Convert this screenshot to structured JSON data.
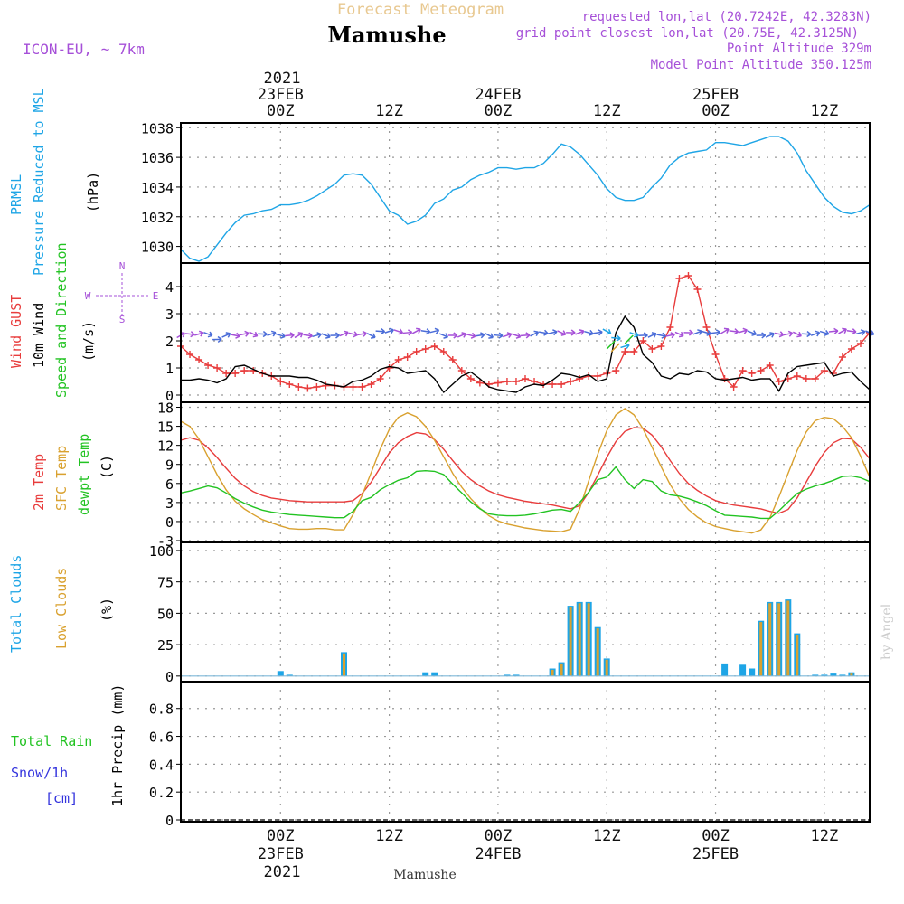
{
  "header": {
    "forecast_title": "Forecast Meteogram",
    "location": "Mamushe",
    "model": "ICON-EU, ~ 7km",
    "requested": "requested lon,lat (20.7242E, 42.3283N)",
    "grid_point": "grid point closest lon,lat (20.75E, 42.3125N)",
    "point_alt": "Point Altitude 329m",
    "model_alt": "Model Point Altitude 350.125m",
    "footer_location": "Mamushe",
    "watermark": "by Angel"
  },
  "colors": {
    "pressure": "#1ea5e6",
    "gust": "#e83c3c",
    "wind": "#000000",
    "direction": "#22c322",
    "t2m": "#e83c3c",
    "sfc": "#d9a12f",
    "dewpt": "#22c322",
    "total_clouds": "#1ea5e6",
    "low_clouds": "#d9a12f",
    "rain": "#22c322",
    "snow": "#3333dd",
    "purple": "#a650d8",
    "axis_label_orange": "#e8c890"
  },
  "time_axis": {
    "top_year": "2021",
    "bottom_year": "2021",
    "ticks": [
      {
        "hour": 0,
        "label": "00Z",
        "date": "23FEB"
      },
      {
        "hour": 12,
        "label": "12Z",
        "date": ""
      },
      {
        "hour": 24,
        "label": "00Z",
        "date": "24FEB"
      },
      {
        "hour": 36,
        "label": "12Z",
        "date": ""
      },
      {
        "hour": 48,
        "label": "00Z",
        "date": "25FEB"
      },
      {
        "hour": 60,
        "label": "12Z",
        "date": ""
      }
    ]
  },
  "chart_data": [
    {
      "type": "line",
      "panel": "pressure",
      "labels": [
        "PRMSL",
        "Pressure Reduced to MSL",
        "(hPa)"
      ],
      "ylim": [
        1029,
        1038.2
      ],
      "yticks": [
        1030,
        1032,
        1034,
        1036,
        1038
      ],
      "grid": true,
      "x": [
        -11,
        -10,
        -9,
        -8,
        -7,
        -6,
        -5,
        -4,
        -3,
        -2,
        -1,
        0,
        1,
        2,
        3,
        4,
        5,
        6,
        7,
        8,
        9,
        10,
        11,
        12,
        13,
        14,
        15,
        16,
        17,
        18,
        19,
        20,
        21,
        22,
        23,
        24,
        25,
        26,
        27,
        28,
        29,
        30,
        31,
        32,
        33,
        34,
        35,
        36,
        37,
        38,
        39,
        40,
        41,
        42,
        43,
        44,
        45,
        46,
        47,
        48,
        49,
        50,
        51,
        52,
        53,
        54,
        55,
        56,
        57,
        58,
        59,
        60,
        61,
        62,
        63,
        64,
        65
      ],
      "series": [
        {
          "key": "prmsl",
          "values": [
            1029.8,
            1029.2,
            1029.0,
            1029.3,
            1030.1,
            1030.9,
            1031.6,
            1032.1,
            1032.2,
            1032.4,
            1032.5,
            1032.8,
            1032.8,
            1032.9,
            1033.1,
            1033.4,
            1033.8,
            1034.2,
            1034.8,
            1034.9,
            1034.8,
            1034.2,
            1033.3,
            1032.4,
            1032.1,
            1031.5,
            1031.7,
            1032.1,
            1032.9,
            1033.2,
            1033.8,
            1034.0,
            1034.5,
            1034.8,
            1035.0,
            1035.3,
            1035.3,
            1035.2,
            1035.3,
            1035.3,
            1035.6,
            1036.2,
            1036.9,
            1036.7,
            1036.2,
            1035.5,
            1034.8,
            1033.9,
            1033.3,
            1033.1,
            1033.1,
            1033.3,
            1034.0,
            1034.6,
            1035.5,
            1036.0,
            1036.3,
            1036.4,
            1036.5,
            1037.0,
            1037.0,
            1036.9,
            1036.8,
            1037.0,
            1037.2,
            1037.4,
            1037.4,
            1037.1,
            1036.3,
            1035.1,
            1034.2,
            1033.3,
            1032.7,
            1032.3,
            1032.2,
            1032.4,
            1032.8
          ]
        }
      ]
    },
    {
      "type": "line",
      "panel": "wind",
      "labels": [
        "Wind GUST",
        "10m Wind",
        "Speed and Direction",
        "(m/s)"
      ],
      "compass": {
        "n": "N",
        "s": "S",
        "e": "E",
        "w": "W"
      },
      "ylim": [
        -0.2,
        4.8
      ],
      "yticks": [
        0,
        1,
        2,
        3,
        4
      ],
      "grid": true,
      "x": [
        -11,
        -10,
        -9,
        -8,
        -7,
        -6,
        -5,
        -4,
        -3,
        -2,
        -1,
        0,
        1,
        2,
        3,
        4,
        5,
        6,
        7,
        8,
        9,
        10,
        11,
        12,
        13,
        14,
        15,
        16,
        17,
        18,
        19,
        20,
        21,
        22,
        23,
        24,
        25,
        26,
        27,
        28,
        29,
        30,
        31,
        32,
        33,
        34,
        35,
        36,
        37,
        38,
        39,
        40,
        41,
        42,
        43,
        44,
        45,
        46,
        47,
        48,
        49,
        50,
        51,
        52,
        53,
        54,
        55,
        56,
        57,
        58,
        59,
        60,
        61,
        62,
        63,
        64,
        65
      ],
      "series": [
        {
          "key": "gust",
          "marker": "+",
          "values": [
            1.8,
            1.5,
            1.3,
            1.1,
            1.0,
            0.8,
            0.8,
            0.9,
            0.9,
            0.8,
            0.7,
            0.5,
            0.4,
            0.3,
            0.25,
            0.3,
            0.35,
            0.35,
            0.3,
            0.3,
            0.3,
            0.4,
            0.6,
            1.0,
            1.3,
            1.4,
            1.6,
            1.7,
            1.8,
            1.6,
            1.3,
            0.9,
            0.6,
            0.45,
            0.4,
            0.45,
            0.5,
            0.5,
            0.6,
            0.5,
            0.4,
            0.4,
            0.4,
            0.5,
            0.6,
            0.7,
            0.7,
            0.8,
            0.9,
            1.6,
            1.6,
            2.0,
            1.7,
            1.8,
            2.5,
            4.3,
            4.4,
            3.9,
            2.5,
            1.5,
            0.6,
            0.3,
            0.9,
            0.8,
            0.9,
            1.1,
            0.5,
            0.6,
            0.7,
            0.6,
            0.6,
            0.9,
            0.8,
            1.4,
            1.7,
            1.9,
            2.3
          ]
        },
        {
          "key": "wind",
          "values": [
            0.55,
            0.55,
            0.6,
            0.55,
            0.45,
            0.6,
            1.05,
            1.1,
            0.95,
            0.8,
            0.7,
            0.7,
            0.7,
            0.65,
            0.65,
            0.55,
            0.4,
            0.35,
            0.3,
            0.5,
            0.55,
            0.7,
            0.95,
            1.05,
            1.0,
            0.8,
            0.85,
            0.9,
            0.6,
            0.1,
            0.4,
            0.7,
            0.85,
            0.6,
            0.3,
            0.2,
            0.15,
            0.1,
            0.3,
            0.4,
            0.35,
            0.55,
            0.8,
            0.75,
            0.65,
            0.75,
            0.5,
            0.6,
            2.3,
            2.9,
            2.5,
            1.5,
            1.2,
            0.7,
            0.6,
            0.8,
            0.75,
            0.9,
            0.85,
            0.6,
            0.55,
            0.6,
            0.65,
            0.55,
            0.6,
            0.6,
            0.15,
            0.8,
            1.05,
            1.1,
            1.15,
            1.2,
            0.7,
            0.8,
            0.85,
            0.5,
            0.2
          ]
        },
        {
          "key": "direction_arrows_level",
          "values": [
            2.2,
            2.25,
            2.25,
            2.25,
            2.05,
            2.2,
            2.2,
            2.25,
            2.25,
            2.25,
            2.25,
            2.2,
            2.2,
            2.2,
            2.2,
            2.2,
            2.2,
            2.2,
            2.25,
            2.25,
            2.25,
            2.2,
            2.35,
            2.35,
            2.35,
            2.3,
            2.35,
            2.35,
            2.35,
            2.2,
            2.2,
            2.2,
            2.2,
            2.2,
            2.2,
            2.2,
            2.2,
            2.2,
            2.2,
            2.25,
            2.3,
            2.3,
            2.3,
            2.3,
            2.3,
            2.3,
            2.3,
            2.35,
            2.1,
            1.8,
            2.25,
            2.2,
            2.2,
            2.2,
            2.2,
            2.25,
            2.3,
            2.3,
            2.3,
            2.3,
            2.35,
            2.35,
            2.35,
            2.3,
            2.2,
            2.2,
            2.25,
            2.25,
            2.25,
            2.25,
            2.25,
            2.3,
            2.35,
            2.35,
            2.35,
            2.3,
            2.3
          ]
        }
      ]
    },
    {
      "type": "line",
      "panel": "temperature",
      "labels": [
        "2m Temp",
        "SFC Temp",
        "dewpt Temp",
        "(C)"
      ],
      "ylim": [
        -3,
        18.5
      ],
      "yticks": [
        -3,
        0,
        3,
        6,
        9,
        12,
        15,
        18
      ],
      "grid": true,
      "x": [
        -11,
        -10,
        -9,
        -8,
        -7,
        -6,
        -5,
        -4,
        -3,
        -2,
        -1,
        0,
        1,
        2,
        3,
        4,
        5,
        6,
        7,
        8,
        9,
        10,
        11,
        12,
        13,
        14,
        15,
        16,
        17,
        18,
        19,
        20,
        21,
        22,
        23,
        24,
        25,
        26,
        27,
        28,
        29,
        30,
        31,
        32,
        33,
        34,
        35,
        36,
        37,
        38,
        39,
        40,
        41,
        42,
        43,
        44,
        45,
        46,
        47,
        48,
        49,
        50,
        51,
        52,
        53,
        54,
        55,
        56,
        57,
        58,
        59,
        60,
        61,
        62,
        63,
        64,
        65
      ],
      "series": [
        {
          "key": "t2m",
          "values": [
            12.8,
            13.2,
            12.8,
            11.6,
            10.1,
            8.4,
            6.8,
            5.6,
            4.7,
            4.1,
            3.7,
            3.5,
            3.3,
            3.2,
            3.1,
            3.1,
            3.1,
            3.1,
            3.1,
            3.3,
            4.4,
            6.2,
            8.5,
            10.8,
            12.4,
            13.4,
            14.0,
            13.8,
            12.9,
            11.4,
            9.6,
            7.9,
            6.6,
            5.6,
            4.8,
            4.2,
            3.8,
            3.5,
            3.2,
            3.0,
            2.8,
            2.6,
            2.3,
            2.0,
            2.5,
            4.6,
            7.3,
            10.1,
            12.6,
            14.2,
            14.8,
            14.7,
            13.6,
            11.8,
            9.6,
            7.6,
            6.0,
            4.9,
            4.0,
            3.3,
            2.9,
            2.6,
            2.4,
            2.2,
            2.0,
            1.6,
            1.3,
            1.9,
            3.7,
            6.2,
            8.7,
            10.9,
            12.4,
            13.1,
            13.0,
            11.7,
            9.9
          ]
        },
        {
          "key": "sfc",
          "values": [
            15.8,
            15.0,
            13.0,
            10.2,
            7.4,
            5.0,
            3.2,
            2.0,
            1.1,
            0.3,
            -0.2,
            -0.7,
            -1.1,
            -1.2,
            -1.2,
            -1.1,
            -1.1,
            -1.3,
            -1.3,
            1.1,
            4.1,
            7.7,
            11.4,
            14.5,
            16.4,
            17.1,
            16.5,
            15.0,
            12.8,
            10.2,
            7.6,
            5.4,
            3.6,
            2.1,
            0.9,
            0.1,
            -0.4,
            -0.7,
            -1.0,
            -1.2,
            -1.4,
            -1.5,
            -1.6,
            -1.2,
            2.0,
            6.4,
            10.6,
            14.3,
            16.8,
            17.8,
            16.8,
            14.6,
            11.7,
            8.6,
            5.8,
            3.6,
            1.9,
            0.7,
            -0.2,
            -0.8,
            -1.1,
            -1.4,
            -1.6,
            -1.8,
            -1.3,
            0.6,
            3.9,
            7.6,
            11.2,
            14.1,
            15.9,
            16.4,
            16.2,
            15.0,
            13.2,
            10.3,
            7.0
          ]
        },
        {
          "key": "dewpt",
          "values": [
            4.5,
            4.8,
            5.2,
            5.6,
            5.3,
            4.5,
            3.6,
            2.9,
            2.3,
            1.8,
            1.5,
            1.3,
            1.1,
            1.0,
            0.9,
            0.8,
            0.7,
            0.6,
            0.6,
            1.6,
            3.3,
            3.8,
            5.0,
            5.8,
            6.5,
            6.9,
            7.9,
            8.0,
            7.9,
            7.4,
            5.9,
            4.5,
            3.1,
            2.0,
            1.2,
            1.0,
            0.9,
            0.9,
            1.0,
            1.2,
            1.5,
            1.8,
            1.9,
            1.6,
            3.0,
            4.6,
            6.6,
            7.0,
            8.6,
            6.6,
            5.2,
            6.6,
            6.3,
            4.8,
            4.2,
            4.0,
            3.6,
            3.1,
            2.5,
            1.7,
            1.0,
            0.9,
            0.8,
            0.7,
            0.5,
            0.5,
            1.7,
            3.1,
            4.4,
            5.1,
            5.6,
            6.0,
            6.5,
            7.1,
            7.2,
            6.9,
            6.3
          ]
        }
      ]
    },
    {
      "type": "bar",
      "panel": "clouds",
      "labels": [
        "Total Clouds",
        "Low Clouds",
        "(%)"
      ],
      "ylim": [
        -3,
        105
      ],
      "yticks": [
        0,
        25,
        50,
        75,
        100
      ],
      "grid": true,
      "series": [
        {
          "key": "total",
          "points": [
            [
              0,
              4
            ],
            [
              1,
              1
            ],
            [
              7,
              19
            ],
            [
              16,
              3
            ],
            [
              17,
              3
            ],
            [
              25,
              1
            ],
            [
              26,
              1
            ],
            [
              30,
              6
            ],
            [
              31,
              11
            ],
            [
              32,
              56
            ],
            [
              33,
              59
            ],
            [
              34,
              59
            ],
            [
              35,
              39
            ],
            [
              36,
              14
            ],
            [
              49,
              10
            ],
            [
              51,
              9
            ],
            [
              52,
              6
            ],
            [
              53,
              44
            ],
            [
              54,
              59
            ],
            [
              55,
              59
            ],
            [
              56,
              61
            ],
            [
              57,
              34
            ],
            [
              59,
              1
            ],
            [
              60,
              1
            ],
            [
              61,
              2
            ],
            [
              62,
              1
            ],
            [
              63,
              3
            ]
          ]
        },
        {
          "key": "low",
          "points": [
            [
              7,
              18
            ],
            [
              30,
              5
            ],
            [
              31,
              10
            ],
            [
              32,
              55
            ],
            [
              33,
              58
            ],
            [
              34,
              58
            ],
            [
              35,
              38
            ],
            [
              36,
              13
            ],
            [
              53,
              43
            ],
            [
              54,
              58
            ],
            [
              55,
              58
            ],
            [
              56,
              60
            ],
            [
              57,
              33
            ],
            [
              63,
              2
            ]
          ]
        }
      ]
    },
    {
      "type": "bar",
      "panel": "precip",
      "labels": [
        "Total Rain",
        "Snow/1h",
        "[cm]",
        "1hr Precip (mm)"
      ],
      "ylim": [
        0,
        0.98
      ],
      "yticks": [
        0,
        0.2,
        0.4,
        0.6,
        0.8
      ],
      "ytick_labels": [
        "0",
        "0.2",
        "0.4",
        "0.6",
        "0.8"
      ],
      "grid": true,
      "series": [
        {
          "key": "rain",
          "points": []
        },
        {
          "key": "snow",
          "points": []
        }
      ]
    }
  ]
}
